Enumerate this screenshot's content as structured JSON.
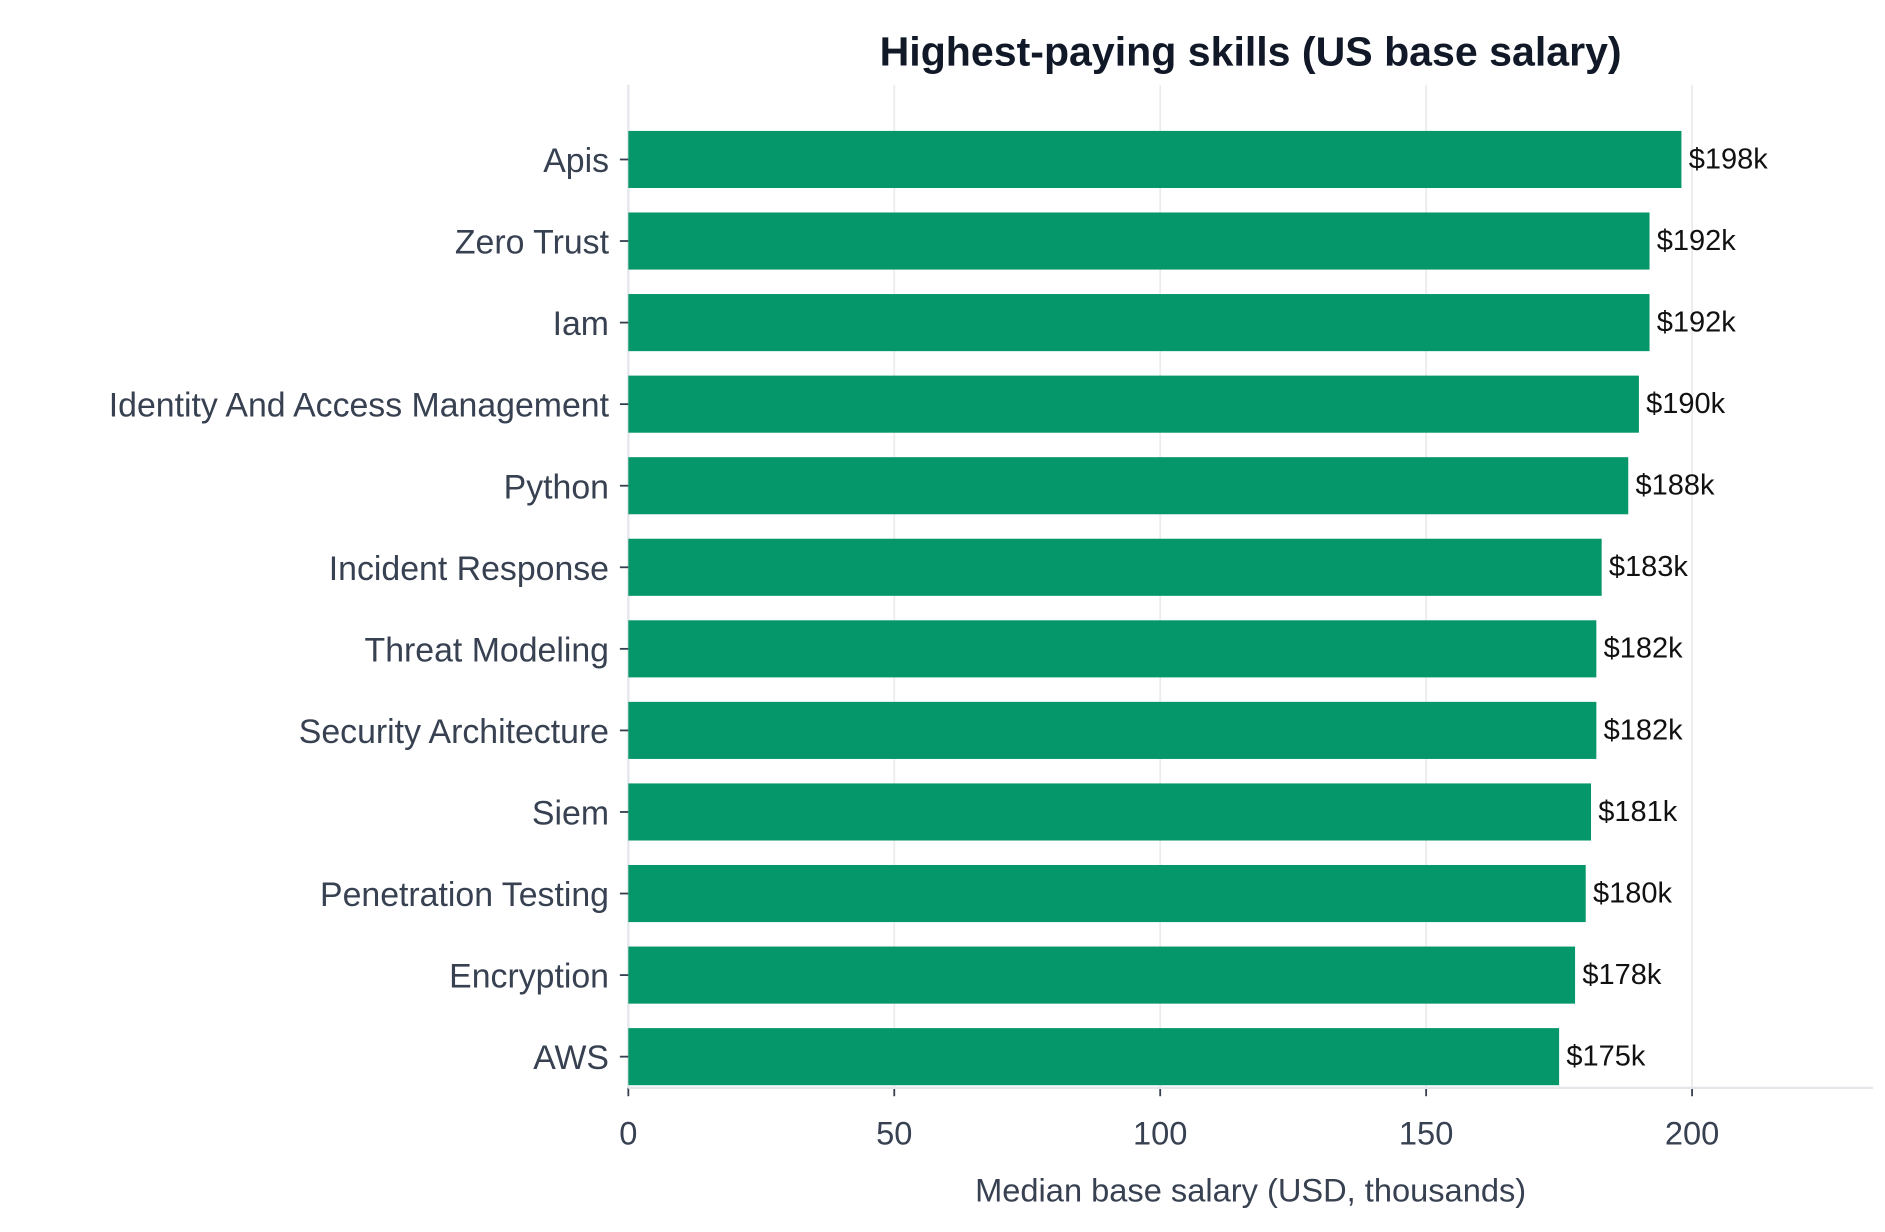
{
  "chart_data": {
    "type": "barh",
    "title": "Highest-paying skills (US base salary)",
    "xlabel": "Median base salary (USD, thousands)",
    "categories": [
      "Apis",
      "Zero Trust",
      "Iam",
      "Identity And Access Management",
      "Python",
      "Incident Response",
      "Threat Modeling",
      "Security Architecture",
      "Siem",
      "Penetration Testing",
      "Encryption",
      "AWS"
    ],
    "values": [
      198,
      192,
      192,
      190,
      188,
      183,
      182,
      182,
      181,
      180,
      178,
      175
    ],
    "value_labels": [
      "$198k",
      "$192k",
      "$192k",
      "$190k",
      "$188k",
      "$183k",
      "$182k",
      "$182k",
      "$181k",
      "$180k",
      "$178k",
      "$175k"
    ],
    "color": "#059669",
    "xlim": [
      0,
      234
    ],
    "xticks": [
      0,
      50,
      100,
      150,
      200
    ],
    "grid": true
  }
}
